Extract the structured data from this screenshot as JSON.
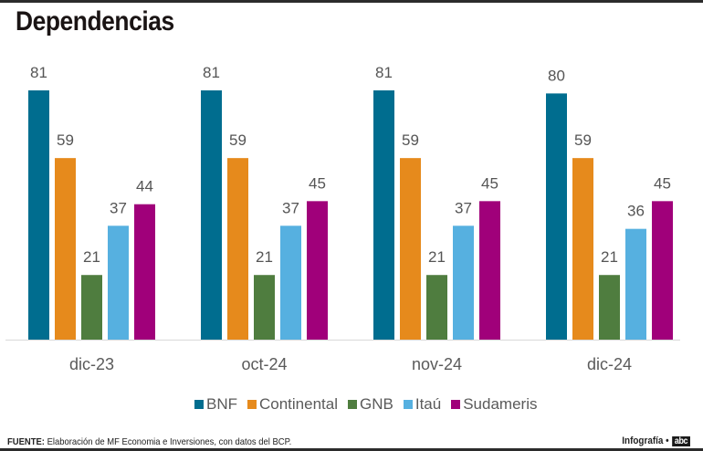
{
  "title": "Dependencias",
  "footer": {
    "source_label": "FUENTE:",
    "source_text": "Elaboración de MF Economia e Inversiones, con datos del BCP.",
    "credit": "Infografía •",
    "logo": "abc"
  },
  "chart_data": {
    "type": "bar",
    "title": "Dependencias",
    "xlabel": "",
    "ylabel": "",
    "ylim": [
      0,
      81
    ],
    "grid": false,
    "legend_position": "bottom",
    "categories": [
      "dic-23",
      "oct-24",
      "nov-24",
      "dic-24"
    ],
    "series": [
      {
        "name": "BNF",
        "color": "#006d8f",
        "values": [
          81,
          81,
          81,
          80
        ]
      },
      {
        "name": "Continental",
        "color": "#e68a1c",
        "values": [
          59,
          59,
          59,
          59
        ]
      },
      {
        "name": "GNB",
        "color": "#4f7d3f",
        "values": [
          21,
          21,
          21,
          21
        ]
      },
      {
        "name": "Itaú",
        "color": "#56b0e0",
        "values": [
          37,
          37,
          37,
          36
        ]
      },
      {
        "name": "Sudameris",
        "color": "#a0007a",
        "values": [
          44,
          45,
          45,
          45
        ]
      }
    ]
  }
}
